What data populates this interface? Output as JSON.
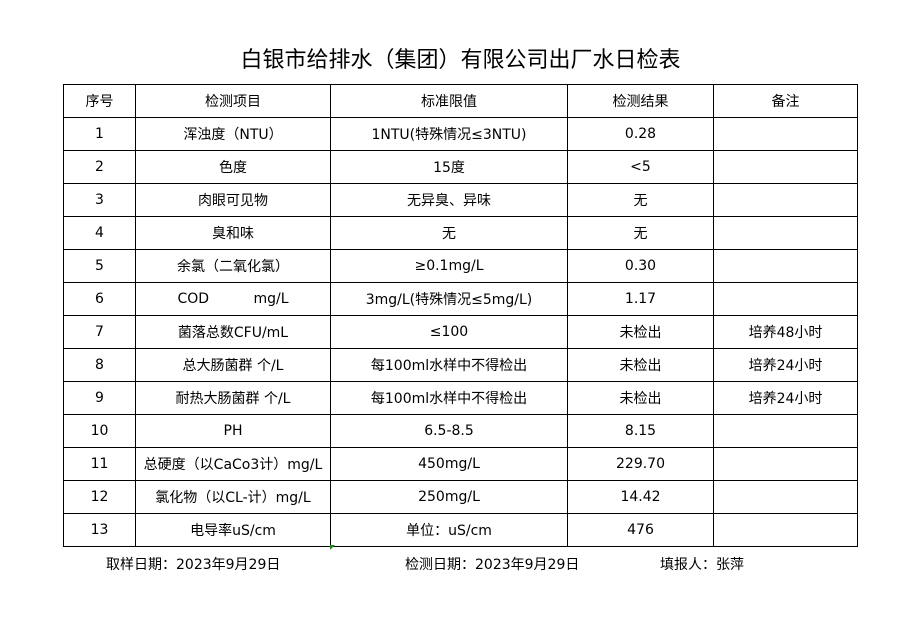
{
  "title": "白银市给排水（集团）有限公司出厂水日检表",
  "headers": [
    "序号",
    "检测项目",
    "标准限值",
    "检测结果",
    "备注"
  ],
  "rows": [
    [
      "1",
      "浑浊度（NTU）",
      "1NTU(特殊情况≤3NTU)",
      "0.28",
      ""
    ],
    [
      "2",
      "色度",
      "15度",
      "<5",
      ""
    ],
    [
      "3",
      "肉眼可见物",
      "无异臭、异味",
      "无",
      ""
    ],
    [
      "4",
      "臭和味",
      "无",
      "无",
      ""
    ],
    [
      "5",
      "余氯（二氧化氯）",
      "≥0.1mg/L",
      "0.30",
      ""
    ],
    [
      "6",
      "COD          mg/L",
      "3mg/L(特殊情况≤5mg/L)",
      "1.17",
      ""
    ],
    [
      "7",
      "菌落总数CFU/mL",
      "≤100",
      "未检出",
      "培养48小时"
    ],
    [
      "8",
      "总大肠菌群 个/L",
      "每100ml水样中不得检出",
      "未检出",
      "培养24小时"
    ],
    [
      "9",
      "耐热大肠菌群 个/L",
      "每100ml水样中不得检出",
      "未检出",
      "培养24小时"
    ],
    [
      "10",
      "PH",
      "6.5-8.5",
      "8.15",
      ""
    ],
    [
      "11",
      "总硬度（以CaCo3计）mg/L",
      "450mg/L",
      "229.70",
      ""
    ],
    [
      "12",
      "氯化物（以CL-计）mg/L",
      "250mg/L",
      "14.42",
      ""
    ],
    [
      "13",
      "电导率uS/cm",
      "单位：uS/cm",
      "476",
      ""
    ]
  ],
  "footer": {
    "sampling_date": "取样日期：2023年9月29日",
    "test_date": "检测日期：2023年9月29日",
    "reporter": "填报人：张萍"
  }
}
